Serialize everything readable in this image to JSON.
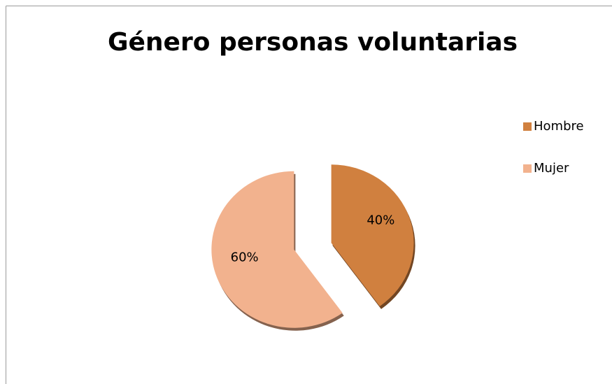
{
  "chart_data": {
    "type": "pie",
    "title": "Género personas voluntarias",
    "categories": [
      "Hombre",
      "Mujer"
    ],
    "values": [
      40,
      60
    ],
    "value_labels": [
      "40%",
      "60%"
    ],
    "colors": [
      "#d0803f",
      "#f2b28e"
    ],
    "legend": "right"
  }
}
